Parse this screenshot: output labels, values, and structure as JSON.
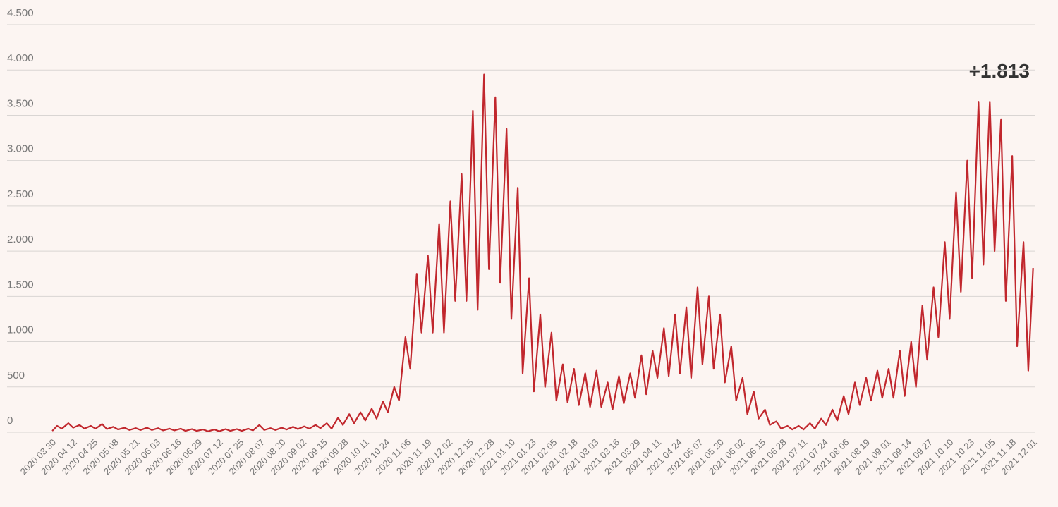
{
  "chart_data": {
    "type": "line",
    "color": "#c1272d",
    "grid": true,
    "annotation": "+1.813",
    "xlim": [
      "2020 03 26",
      "2021 12 02"
    ],
    "ylim": [
      0,
      4500
    ],
    "yticks": [
      0,
      {
        "value": 500,
        "label": "500"
      },
      {
        "value": 1000,
        "label": "1.000"
      },
      {
        "value": 1500,
        "label": "1.500"
      },
      {
        "value": 2000,
        "label": "2.000"
      },
      {
        "value": 2500,
        "label": "2.500"
      },
      {
        "value": 3000,
        "label": "3.000"
      },
      {
        "value": 3500,
        "label": "3.500"
      },
      {
        "value": 4000,
        "label": "4.000"
      },
      {
        "value": 4500,
        "label": "4.500"
      }
    ],
    "xticks": [
      "2020 03 30",
      "2020 04 12",
      "2020 04 25",
      "2020 05 08",
      "2020 05 21",
      "2020 06 03",
      "2020 06 16",
      "2020 06 29",
      "2020 07 12",
      "2020 07 25",
      "2020 08 07",
      "2020 08 20",
      "2020 09 02",
      "2020 09 15",
      "2020 09 28",
      "2020 10 11",
      "2020 10 24",
      "2020 11 06",
      "2020 11 19",
      "2020 12 02",
      "2020 12 15",
      "2020 12 28",
      "2021 01 10",
      "2021 01 23",
      "2021 02 05",
      "2021 02 18",
      "2021 03 03",
      "2021 03 16",
      "2021 03 29",
      "2021 04 11",
      "2021 04 24",
      "2021 05 07",
      "2021 05 20",
      "2021 06 02",
      "2021 06 15",
      "2021 06 28",
      "2021 07 11",
      "2021 07 24",
      "2021 08 06",
      "2021 08 19",
      "2021 09 01",
      "2021 09 14",
      "2021 09 27",
      "2021 10 10",
      "2021 10 23",
      "2021 11 05",
      "2021 11 18",
      "2021 12 01"
    ],
    "x": [
      "2020 03 30",
      "2020 04 02",
      "2020 04 05",
      "2020 04 09",
      "2020 04 12",
      "2020 04 16",
      "2020 04 19",
      "2020 04 23",
      "2020 04 26",
      "2020 04 30",
      "2020 05 03",
      "2020 05 07",
      "2020 05 10",
      "2020 05 14",
      "2020 05 17",
      "2020 05 21",
      "2020 05 24",
      "2020 05 28",
      "2020 05 31",
      "2020 06 04",
      "2020 06 07",
      "2020 06 11",
      "2020 06 14",
      "2020 06 18",
      "2020 06 21",
      "2020 06 25",
      "2020 06 28",
      "2020 07 02",
      "2020 07 05",
      "2020 07 09",
      "2020 07 12",
      "2020 07 16",
      "2020 07 19",
      "2020 07 23",
      "2020 07 26",
      "2020 07 30",
      "2020 08 02",
      "2020 08 06",
      "2020 08 09",
      "2020 08 13",
      "2020 08 16",
      "2020 08 20",
      "2020 08 23",
      "2020 08 27",
      "2020 08 30",
      "2020 09 03",
      "2020 09 06",
      "2020 09 10",
      "2020 09 13",
      "2020 09 17",
      "2020 09 20",
      "2020 09 24",
      "2020 09 27",
      "2020 10 01",
      "2020 10 04",
      "2020 10 08",
      "2020 10 11",
      "2020 10 15",
      "2020 10 18",
      "2020 10 22",
      "2020 10 25",
      "2020 10 29",
      "2020 11 01",
      "2020 11 05",
      "2020 11 08",
      "2020 11 12",
      "2020 11 15",
      "2020 11 19",
      "2020 11 22",
      "2020 11 26",
      "2020 11 29",
      "2020 12 03",
      "2020 12 06",
      "2020 12 10",
      "2020 12 13",
      "2020 12 17",
      "2020 12 20",
      "2020 12 24",
      "2020 12 27",
      "2020 12 31",
      "2021 01 03",
      "2021 01 07",
      "2021 01 10",
      "2021 01 14",
      "2021 01 17",
      "2021 01 21",
      "2021 01 24",
      "2021 01 28",
      "2021 01 31",
      "2021 02 04",
      "2021 02 07",
      "2021 02 11",
      "2021 02 14",
      "2021 02 18",
      "2021 02 21",
      "2021 02 25",
      "2021 02 28",
      "2021 03 04",
      "2021 03 07",
      "2021 03 11",
      "2021 03 14",
      "2021 03 18",
      "2021 03 21",
      "2021 03 25",
      "2021 03 28",
      "2021 04 01",
      "2021 04 04",
      "2021 04 08",
      "2021 04 11",
      "2021 04 15",
      "2021 04 18",
      "2021 04 22",
      "2021 04 25",
      "2021 04 29",
      "2021 05 02",
      "2021 05 06",
      "2021 05 09",
      "2021 05 13",
      "2021 05 16",
      "2021 05 20",
      "2021 05 23",
      "2021 05 27",
      "2021 05 30",
      "2021 06 03",
      "2021 06 06",
      "2021 06 10",
      "2021 06 13",
      "2021 06 17",
      "2021 06 20",
      "2021 06 24",
      "2021 06 27",
      "2021 07 01",
      "2021 07 04",
      "2021 07 08",
      "2021 07 11",
      "2021 07 15",
      "2021 07 18",
      "2021 07 22",
      "2021 07 25",
      "2021 07 29",
      "2021 08 01",
      "2021 08 05",
      "2021 08 08",
      "2021 08 12",
      "2021 08 15",
      "2021 08 19",
      "2021 08 22",
      "2021 08 26",
      "2021 08 29",
      "2021 09 02",
      "2021 09 05",
      "2021 09 09",
      "2021 09 12",
      "2021 09 16",
      "2021 09 19",
      "2021 09 23",
      "2021 09 26",
      "2021 09 30",
      "2021 10 03",
      "2021 10 07",
      "2021 10 10",
      "2021 10 14",
      "2021 10 17",
      "2021 10 21",
      "2021 10 24",
      "2021 10 28",
      "2021 10 31",
      "2021 11 04",
      "2021 11 07",
      "2021 11 11",
      "2021 11 14",
      "2021 11 18",
      "2021 11 21",
      "2021 11 25",
      "2021 11 28",
      "2021 12 01"
    ],
    "values": [
      15,
      70,
      40,
      100,
      50,
      80,
      40,
      70,
      40,
      90,
      35,
      60,
      30,
      50,
      25,
      45,
      25,
      50,
      25,
      45,
      20,
      40,
      20,
      40,
      15,
      35,
      15,
      30,
      10,
      30,
      10,
      35,
      15,
      35,
      15,
      40,
      20,
      80,
      25,
      45,
      25,
      50,
      30,
      60,
      35,
      65,
      40,
      80,
      45,
      100,
      40,
      160,
      80,
      200,
      100,
      220,
      130,
      260,
      150,
      340,
      220,
      500,
      350,
      1050,
      700,
      1750,
      1100,
      1950,
      1100,
      2300,
      1100,
      2550,
      1450,
      2850,
      1450,
      3550,
      1350,
      3950,
      1800,
      3700,
      1650,
      3350,
      1250,
      2700,
      650,
      1700,
      450,
      1300,
      500,
      1100,
      350,
      750,
      330,
      700,
      300,
      650,
      280,
      680,
      280,
      550,
      250,
      620,
      320,
      650,
      380,
      850,
      420,
      900,
      600,
      1150,
      620,
      1300,
      650,
      1380,
      600,
      1600,
      750,
      1500,
      700,
      1300,
      550,
      950,
      350,
      600,
      200,
      450,
      150,
      250,
      80,
      120,
      40,
      70,
      30,
      70,
      30,
      100,
      40,
      150,
      80,
      250,
      130,
      400,
      200,
      550,
      300,
      600,
      350,
      680,
      380,
      700,
      380,
      900,
      400,
      1000,
      500,
      1400,
      800,
      1600,
      1050,
      2100,
      1250,
      2650,
      1550,
      3000,
      1700,
      3650,
      1850,
      3650,
      2000,
      3450,
      1450,
      3050,
      950,
      2100,
      680,
      1813
    ]
  }
}
